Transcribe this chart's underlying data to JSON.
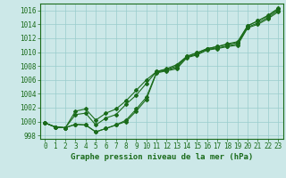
{
  "x": [
    0,
    1,
    2,
    3,
    4,
    5,
    6,
    7,
    8,
    9,
    10,
    11,
    12,
    13,
    14,
    15,
    16,
    17,
    18,
    19,
    20,
    21,
    22,
    23
  ],
  "line1": [
    999.8,
    999.2,
    999.1,
    999.6,
    999.5,
    998.5,
    999.0,
    999.5,
    1000.0,
    1001.5,
    1003.2,
    1007.0,
    1007.3,
    1007.6,
    1009.2,
    1009.6,
    1010.3,
    1010.5,
    1010.8,
    1011.0,
    1013.5,
    1014.0,
    1014.8,
    1015.8
  ],
  "line2": [
    999.8,
    999.2,
    999.1,
    1001.0,
    1001.2,
    999.5,
    1000.5,
    1001.0,
    1002.5,
    1003.8,
    1005.5,
    1007.2,
    1007.6,
    1008.2,
    1009.4,
    1009.9,
    1010.5,
    1010.8,
    1011.1,
    1011.4,
    1013.8,
    1014.5,
    1015.2,
    1016.2
  ],
  "line3": [
    999.8,
    999.2,
    999.1,
    1001.5,
    1001.8,
    1000.2,
    1001.2,
    1001.8,
    1003.0,
    1004.5,
    1006.0,
    1007.2,
    1007.5,
    1008.0,
    1009.4,
    1009.9,
    1010.5,
    1010.8,
    1011.2,
    1011.5,
    1013.8,
    1014.5,
    1015.3,
    1016.3
  ],
  "line4": [
    999.8,
    999.2,
    999.1,
    999.6,
    999.5,
    998.5,
    999.0,
    999.5,
    1000.2,
    1001.8,
    1003.5,
    1007.1,
    1007.4,
    1007.8,
    1009.3,
    1009.7,
    1010.4,
    1010.6,
    1010.9,
    1011.2,
    1013.6,
    1014.2,
    1015.0,
    1016.0
  ],
  "line_color": "#1a6b1a",
  "bg_color": "#cce8e8",
  "grid_color": "#99cccc",
  "xlabel": "Graphe pression niveau de la mer (hPa)",
  "ylim": [
    997.5,
    1017.0
  ],
  "xlim_min": -0.5,
  "xlim_max": 23.5,
  "yticks": [
    998,
    1000,
    1002,
    1004,
    1006,
    1008,
    1010,
    1012,
    1014,
    1016
  ],
  "xticks": [
    0,
    1,
    2,
    3,
    4,
    5,
    6,
    7,
    8,
    9,
    10,
    11,
    12,
    13,
    14,
    15,
    16,
    17,
    18,
    19,
    20,
    21,
    22,
    23
  ],
  "tick_fontsize": 5.5,
  "xlabel_fontsize": 6.5
}
